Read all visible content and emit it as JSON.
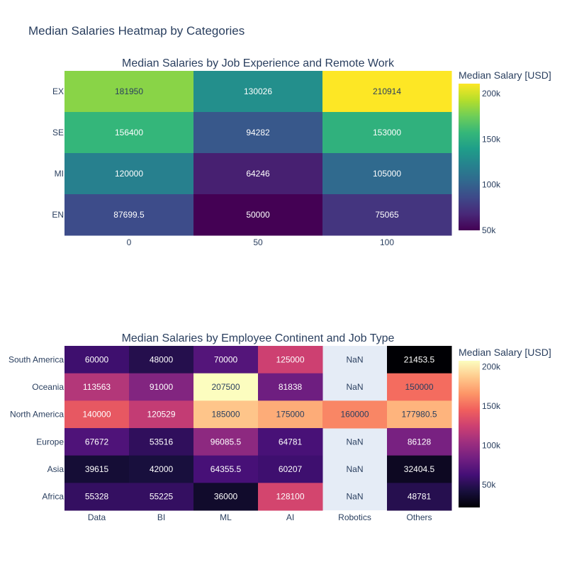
{
  "page": {
    "title": "Median Salaries Heatmap by Categories"
  },
  "chart_data": [
    {
      "type": "heatmap",
      "title": "Median Salaries by Job Experience and Remote Work",
      "x": [
        "0",
        "50",
        "100"
      ],
      "y": [
        "EX",
        "SE",
        "MI",
        "EN"
      ],
      "z": [
        [
          181950,
          130026,
          210914
        ],
        [
          156400,
          94282,
          153000
        ],
        [
          120000,
          64246,
          105000
        ],
        [
          87699.5,
          50000,
          75065
        ]
      ],
      "colorscale": "viridis",
      "colorbar": {
        "title": "Median Salary [USD]",
        "ticks": [
          "50k",
          "100k",
          "150k",
          "200k"
        ],
        "tickvals": [
          50000,
          100000,
          150000,
          200000
        ],
        "range": [
          50000,
          210914
        ]
      }
    },
    {
      "type": "heatmap",
      "title": "Median Salaries by Employee Continent and Job Type",
      "x": [
        "Data",
        "BI",
        "ML",
        "AI",
        "Robotics",
        "Others"
      ],
      "y": [
        "South America",
        "Oceania",
        "North America",
        "Europe",
        "Asia",
        "Africa"
      ],
      "z": [
        [
          60000,
          48000,
          70000,
          125000,
          null,
          21453.5
        ],
        [
          113563,
          91000,
          207500,
          81838,
          null,
          150000
        ],
        [
          140000,
          120529,
          185000,
          175000,
          160000,
          177980.5
        ],
        [
          67672,
          53516,
          96085.5,
          64781,
          null,
          86128
        ],
        [
          39615,
          42000,
          64355.5,
          60207,
          null,
          32404.5
        ],
        [
          55328,
          55225,
          36000,
          128100,
          null,
          48781
        ]
      ],
      "missing_label": "NaN",
      "colorscale": "magma",
      "colorbar": {
        "title": "Median Salary [USD]",
        "ticks": [
          "50k",
          "100k",
          "150k",
          "200k"
        ],
        "tickvals": [
          50000,
          100000,
          150000,
          200000
        ],
        "range": [
          21453.5,
          207500
        ]
      }
    }
  ]
}
